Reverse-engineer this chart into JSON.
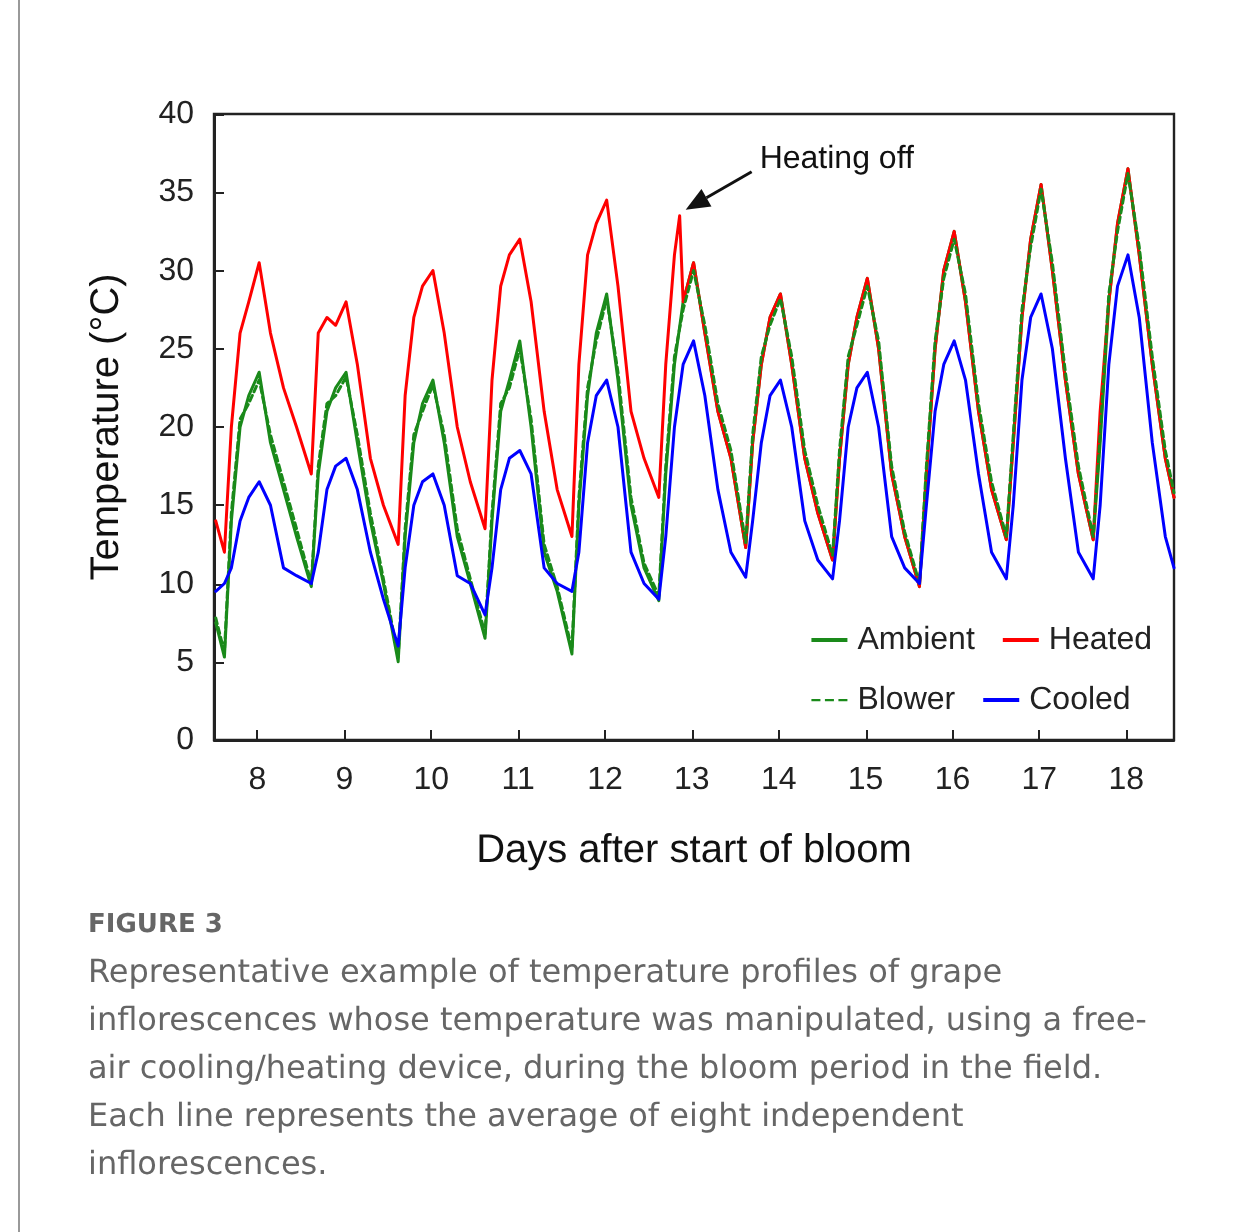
{
  "chart_data": {
    "type": "line",
    "xlabel": "Days after start of bloom",
    "ylabel": "Temperature (°C)",
    "xlim": [
      7.5,
      18.55
    ],
    "xticks": [
      8,
      9,
      10,
      11,
      12,
      13,
      14,
      15,
      16,
      17,
      18
    ],
    "ylim": [
      0,
      40
    ],
    "yticks": [
      0,
      5,
      10,
      15,
      20,
      25,
      30,
      35,
      40
    ],
    "grid": false,
    "legend": "bottom right",
    "marker": "none",
    "x": [
      7.52,
      7.62,
      7.7,
      7.8,
      7.9,
      8.02,
      8.15,
      8.3,
      8.45,
      8.62,
      8.7,
      8.8,
      8.9,
      9.02,
      9.15,
      9.3,
      9.45,
      9.62,
      9.7,
      9.8,
      9.9,
      10.02,
      10.15,
      10.3,
      10.45,
      10.62,
      10.7,
      10.8,
      10.9,
      11.02,
      11.15,
      11.3,
      11.45,
      11.62,
      11.7,
      11.8,
      11.9,
      12.02,
      12.15,
      12.3,
      12.45,
      12.62,
      12.7,
      12.8,
      12.9,
      13.02,
      13.15,
      13.3,
      13.45,
      13.62,
      13.7,
      13.8,
      13.9,
      14.02,
      14.15,
      14.3,
      14.45,
      14.62,
      14.7,
      14.8,
      14.9,
      15.02,
      15.15,
      15.3,
      15.45,
      15.62,
      15.7,
      15.8,
      15.9,
      16.02,
      16.15,
      16.3,
      16.45,
      16.62,
      16.7,
      16.8,
      16.9,
      17.02,
      17.15,
      17.3,
      17.45,
      17.62,
      17.7,
      17.8,
      17.9,
      18.02,
      18.15,
      18.3,
      18.45,
      18.55
    ],
    "series": [
      {
        "name": "Ambient",
        "color": "#1a8a1a",
        "line_style": "solid",
        "values": [
          7.5,
          5.3,
          14,
          20,
          22,
          23.5,
          19,
          16,
          13,
          9.8,
          17,
          21,
          22.5,
          23.5,
          19,
          14,
          10,
          5,
          13,
          19,
          21.5,
          23,
          19,
          13,
          10,
          6.5,
          14,
          21,
          23,
          25.5,
          20,
          12,
          9.5,
          5.5,
          15,
          22,
          26,
          28.5,
          23,
          15,
          11,
          8.9,
          17,
          24,
          28,
          30.5,
          26,
          21,
          18,
          12.3,
          19,
          24,
          27,
          28.5,
          24,
          18,
          14.5,
          11.5,
          18,
          24,
          27,
          29.5,
          25,
          17,
          13,
          9.8,
          17,
          25,
          30,
          32.5,
          28,
          21,
          16,
          12.8,
          19,
          27,
          32,
          35.5,
          30,
          23,
          17,
          12.8,
          19,
          28,
          33,
          36.5,
          31,
          24,
          18,
          15.5
        ]
      },
      {
        "name": "Heated",
        "color": "#ff0000",
        "line_style": "solid",
        "x": [
          7.52,
          7.62,
          7.7,
          7.8,
          7.9,
          8.02,
          8.15,
          8.3,
          8.45,
          8.62,
          8.7,
          8.8,
          8.9,
          9.02,
          9.15,
          9.3,
          9.45,
          9.62,
          9.7,
          9.8,
          9.9,
          10.02,
          10.15,
          10.3,
          10.45,
          10.62,
          10.7,
          10.8,
          10.9,
          11.02,
          11.15,
          11.3,
          11.45,
          11.62,
          11.7,
          11.8,
          11.9,
          12.02,
          12.15,
          12.3,
          12.45,
          12.62,
          12.7,
          12.8,
          12.86,
          12.9,
          13.02,
          13.15,
          13.3,
          13.45,
          13.62,
          13.7,
          13.8,
          13.9,
          14.02,
          14.15,
          14.3,
          14.45,
          14.62,
          14.7,
          14.8,
          14.9,
          15.02,
          15.15,
          15.3,
          15.45,
          15.62,
          15.7,
          15.8,
          15.9,
          16.02,
          16.15,
          16.3,
          16.45,
          16.62,
          16.7,
          16.8,
          16.9,
          17.02,
          17.15,
          17.3,
          17.45,
          17.62,
          17.7,
          17.8,
          17.9,
          18.02,
          18.15,
          18.3,
          18.45,
          18.55
        ],
        "values": [
          14,
          12,
          20,
          26,
          28,
          30.5,
          26,
          22.5,
          20,
          17,
          26,
          27,
          26.5,
          28,
          24,
          18,
          15,
          12.5,
          22,
          27,
          29,
          30,
          26,
          20,
          16.5,
          13.5,
          23,
          29,
          31,
          32,
          28,
          21,
          16,
          13,
          24,
          31,
          33,
          34.5,
          29,
          21,
          18,
          15.5,
          24,
          31,
          33.5,
          28,
          30.5,
          26,
          21,
          18,
          12.3,
          19,
          24,
          27,
          28.5,
          24,
          18,
          14.5,
          11.5,
          18,
          24,
          27,
          29.5,
          25,
          17,
          13,
          9.8,
          17,
          25,
          30,
          32.5,
          28,
          21,
          16,
          12.8,
          19,
          27,
          32,
          35.5,
          30,
          23,
          17,
          12.8,
          21,
          28,
          33,
          36.5,
          31,
          24,
          18,
          15.5
        ]
      },
      {
        "name": "Blower",
        "color": "#1a8a1a",
        "line_style": "dashed",
        "values": [
          7.8,
          5.6,
          14.5,
          20.5,
          21.5,
          23,
          19.5,
          16.5,
          13.5,
          10,
          17.5,
          21.5,
          22,
          23.2,
          19.5,
          14.5,
          10.3,
          5.3,
          13.5,
          19.5,
          21,
          22.7,
          19.5,
          13.5,
          10.3,
          6.8,
          14.5,
          21.5,
          22.5,
          25,
          20.5,
          12.5,
          9.8,
          5.8,
          15.5,
          22.5,
          25.5,
          28.2,
          23.5,
          15.5,
          11.3,
          9.2,
          17.5,
          24.5,
          27.5,
          30,
          26.5,
          21.5,
          18.5,
          12.6,
          19.5,
          24.5,
          26.5,
          28.2,
          24.5,
          18.5,
          15,
          11.8,
          18.5,
          24.5,
          26.5,
          29,
          25.5,
          17.5,
          13.3,
          10,
          17.5,
          25.5,
          29.5,
          32,
          28.5,
          21.5,
          16.5,
          13,
          19.5,
          27.5,
          31.5,
          35.2,
          30.5,
          23.5,
          17.5,
          13,
          19.5,
          28.5,
          32.5,
          36.2,
          31.5,
          24.5,
          18.5,
          15.8
        ]
      },
      {
        "name": "Cooled",
        "color": "#0000ff",
        "line_style": "solid",
        "values": [
          9.5,
          10,
          11,
          14,
          15.5,
          16.5,
          15,
          11,
          10.5,
          10,
          12,
          16,
          17.5,
          18,
          16,
          12,
          9,
          6,
          11,
          15,
          16.5,
          17,
          15,
          10.5,
          10,
          8,
          11,
          16,
          18,
          18.5,
          17,
          11,
          10,
          9.5,
          12,
          19,
          22,
          23,
          20,
          12,
          10,
          9,
          13,
          20,
          24,
          25.5,
          22,
          16,
          12,
          10.4,
          14,
          19,
          22,
          23,
          20,
          14,
          11.5,
          10.3,
          14,
          20,
          22.5,
          23.5,
          20,
          13,
          11,
          10,
          15,
          21,
          24,
          25.5,
          23,
          17,
          12,
          10.3,
          15,
          23,
          27,
          28.5,
          25,
          18,
          12,
          10.3,
          15,
          24,
          29,
          31,
          27,
          19,
          13,
          11
        ]
      }
    ],
    "annotations": [
      {
        "text": "Heating off",
        "x": 12.86,
        "y": 33.5
      },
      "FIGURE 3",
      "Representative example of temperature profiles of grape inflorescences whose temperature was manipulated, using a free-air cooling/heating device, during the bloom period in the field. Each line represents the average of eight independent inflorescences."
    ]
  }
}
